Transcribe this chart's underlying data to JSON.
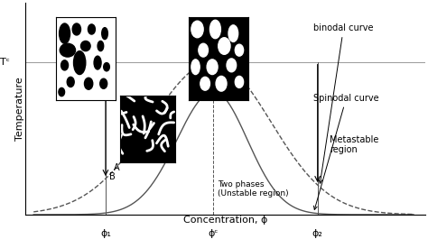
{
  "xlabel": "Concentration, ϕ",
  "ylabel": "Temperature",
  "tc_label": "Tᶜ",
  "phi1_label": "ϕ₁",
  "phi2_label": "ϕ₂",
  "phic_label": "ϕᶜ",
  "binodal_label": "binodal curve",
  "spinodal_label": "Spinodal curve",
  "metastable_label": "Metastable\nregion",
  "twophase_label": "Two phases\n(Unstable region)",
  "point_A": "A",
  "point_B": "B",
  "bg": "#ffffff",
  "gray": "#555555",
  "lgray": "#999999",
  "phi1": 0.2,
  "phic": 0.47,
  "phi2": 0.73,
  "binodal_peak": 0.72,
  "spinodal_peak": 0.58
}
